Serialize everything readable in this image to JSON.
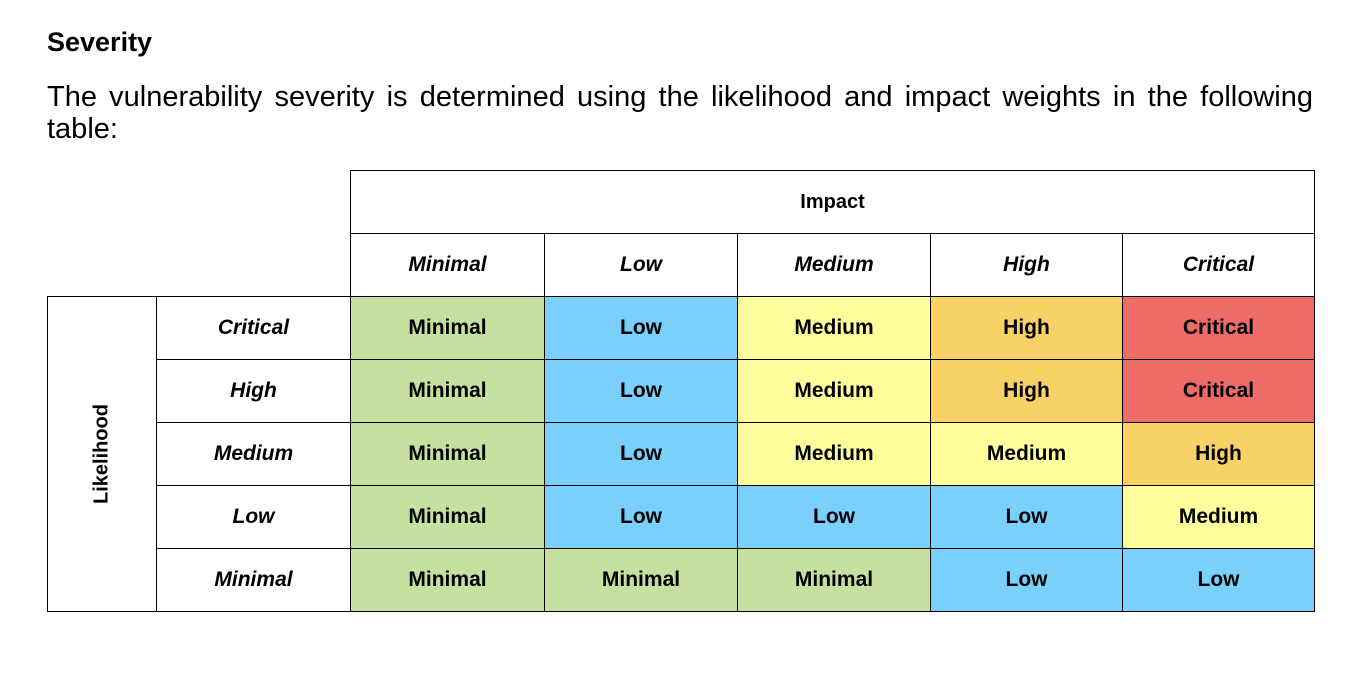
{
  "section": {
    "heading": "Severity",
    "paragraph": "The vulnerability severity is determined using the likelihood and impact weights in the following table:"
  },
  "matrix": {
    "impact_title": "Impact",
    "likelihood_title": "Likelihood",
    "impact_levels": [
      "Minimal",
      "Low",
      "Medium",
      "High",
      "Critical"
    ],
    "likelihood_levels": [
      "Critical",
      "High",
      "Medium",
      "Low",
      "Minimal"
    ],
    "rows": [
      [
        "Minimal",
        "Low",
        "Medium",
        "High",
        "Critical"
      ],
      [
        "Minimal",
        "Low",
        "Medium",
        "High",
        "Critical"
      ],
      [
        "Minimal",
        "Low",
        "Medium",
        "Medium",
        "High"
      ],
      [
        "Minimal",
        "Low",
        "Low",
        "Low",
        "Medium"
      ],
      [
        "Minimal",
        "Minimal",
        "Minimal",
        "Low",
        "Low"
      ]
    ],
    "severity_colors": {
      "Minimal": "#c6e0a0",
      "Low": "#79d0fb",
      "Medium": "#fefe9c",
      "High": "#f9d267",
      "Critical": "#ee6c67"
    }
  }
}
